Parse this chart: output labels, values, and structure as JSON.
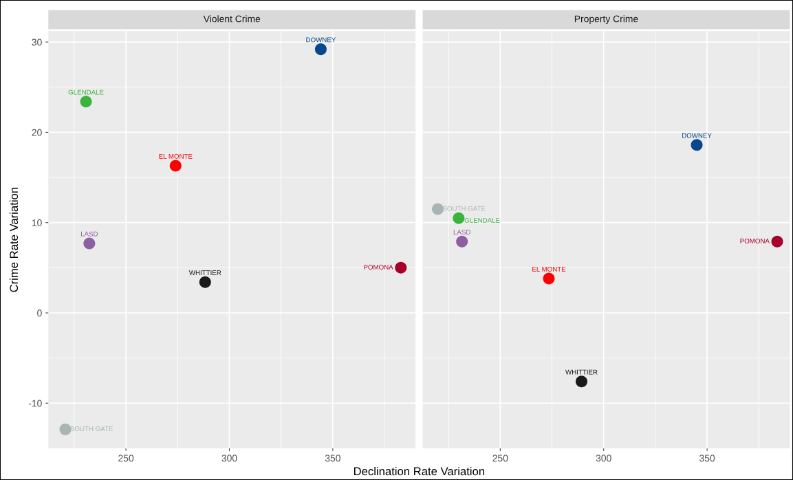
{
  "chart_data": [
    {
      "type": "scatter",
      "title": "Violent Crime",
      "xlabel": "Declination Rate Variation",
      "ylabel": "Crime Rate Variation",
      "xlim": [
        212.5,
        390
      ],
      "xticks": [
        250,
        300,
        350
      ],
      "ylim": [
        -15,
        31.2
      ],
      "yticks": [
        -10,
        0,
        10,
        20,
        30
      ],
      "grid": true,
      "marker": "circle",
      "series": [
        {
          "name": "DOWNEY",
          "color": "#08478c",
          "x": [
            344.2
          ],
          "values": [
            29.2
          ]
        },
        {
          "name": "GLENDALE",
          "color": "#3cb43c",
          "x": [
            230.7
          ],
          "values": [
            23.4
          ]
        },
        {
          "name": "EL MONTE",
          "color": "#ff0000",
          "x": [
            274
          ],
          "values": [
            16.3
          ]
        },
        {
          "name": "LASD",
          "color": "#8e5ea2",
          "x": [
            232.3
          ],
          "values": [
            7.7
          ]
        },
        {
          "name": "WHITTIER",
          "color": "#1a1a1a",
          "x": [
            288.3
          ],
          "values": [
            3.4
          ]
        },
        {
          "name": "POMONA",
          "color": "#a8002a",
          "x": [
            382.9
          ],
          "values": [
            5.0
          ]
        },
        {
          "name": "SOUTH GATE",
          "color": "#a9b4b4",
          "x": [
            220.7
          ],
          "values": [
            -12.9
          ]
        }
      ]
    },
    {
      "type": "scatter",
      "title": "Property Crime",
      "xlim": [
        212.5,
        390
      ],
      "xticks": [
        250,
        300,
        350
      ],
      "ylim": [
        -15,
        31.2
      ],
      "yticks": [
        -10,
        0,
        10,
        20,
        30
      ],
      "tick_labels": "x",
      "grid": true,
      "marker": "circle",
      "series": [
        {
          "name": "DOWNEY",
          "color": "#08478c",
          "x": [
            345
          ],
          "values": [
            18.6
          ]
        },
        {
          "name": "SOUTH GATE",
          "color": "#a9b4b4",
          "x": [
            219.8
          ],
          "values": [
            11.5
          ]
        },
        {
          "name": "GLENDALE",
          "color": "#3cb43c",
          "x": [
            229.9
          ],
          "values": [
            10.5
          ]
        },
        {
          "name": "LASD",
          "color": "#8e5ea2",
          "x": [
            231.5
          ],
          "values": [
            7.9
          ]
        },
        {
          "name": "POMONA",
          "color": "#a8002a",
          "x": [
            383.9
          ],
          "values": [
            7.9
          ]
        },
        {
          "name": "EL MONTE",
          "color": "#ff0000",
          "x": [
            273.5
          ],
          "values": [
            3.8
          ]
        },
        {
          "name": "WHITTIER",
          "color": "#1a1a1a",
          "x": [
            289.3
          ],
          "values": [
            -7.6
          ]
        }
      ]
    }
  ]
}
